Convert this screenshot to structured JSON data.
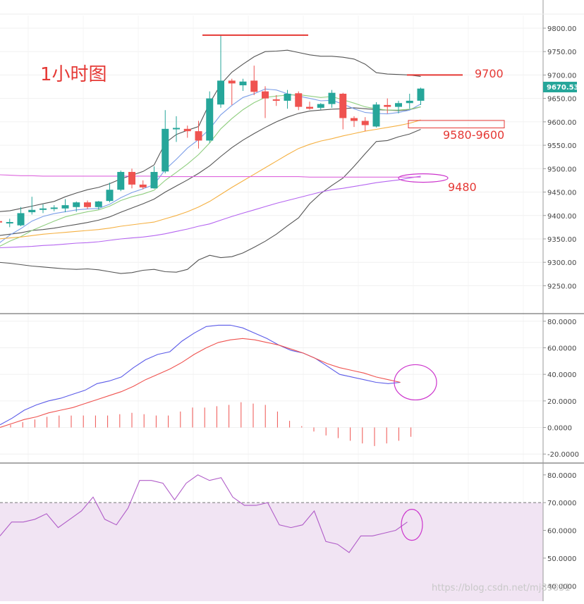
{
  "title": "1小时图",
  "watermark": "https://blog.csdn.net/mj89831",
  "price_panel": {
    "y_ticks": [
      "9800.00",
      "9750.00",
      "9700.00",
      "9650.00",
      "9600.00",
      "9550.00",
      "9500.00",
      "9450.00",
      "9400.00",
      "9350.00",
      "9300.00",
      "9250.00"
    ],
    "current_price": "9670.53",
    "annotations": [
      "9700",
      "9580-9600",
      "9480"
    ]
  },
  "macd_panel": {
    "y_ticks": [
      "80.0000",
      "60.0000",
      "40.0000",
      "20.0000",
      "0.0000",
      "-20.0000"
    ]
  },
  "rsi_panel": {
    "y_ticks": [
      "80.0000",
      "70.0000",
      "60.0000",
      "50.0000",
      "40.0000"
    ]
  },
  "colors": {
    "up": "#26a69a",
    "down": "#ef5350",
    "annotation": "#e53935",
    "bollinger": "#555555",
    "ma_short": "#7b9ee8",
    "ma_mid": "#8fce7f",
    "ma_long_orange": "#f5b041",
    "ma_purple": "#b565f0",
    "flat_magenta": "#dd66dd",
    "macd_fast": "#5b5be8",
    "macd_signal": "#ef5350",
    "rsi": "#b05cc8",
    "rsi_zone": "#f1e4f3"
  },
  "chart_data": [
    {
      "type": "candlestick",
      "timeframe": "1小时图",
      "ylim": [
        9210,
        9815
      ],
      "candles": [
        {
          "o": 9388,
          "h": 9393,
          "l": 9383,
          "c": 9387
        },
        {
          "o": 9385,
          "h": 9393,
          "l": 9375,
          "c": 9386
        },
        {
          "o": 9379,
          "h": 9418,
          "l": 9377,
          "c": 9405
        },
        {
          "o": 9407,
          "h": 9440,
          "l": 9402,
          "c": 9412
        },
        {
          "o": 9412,
          "h": 9424,
          "l": 9405,
          "c": 9415
        },
        {
          "o": 9415,
          "h": 9422,
          "l": 9409,
          "c": 9417
        },
        {
          "o": 9415,
          "h": 9435,
          "l": 9407,
          "c": 9422
        },
        {
          "o": 9418,
          "h": 9430,
          "l": 9408,
          "c": 9428
        },
        {
          "o": 9428,
          "h": 9432,
          "l": 9414,
          "c": 9418
        },
        {
          "o": 9418,
          "h": 9431,
          "l": 9413,
          "c": 9430
        },
        {
          "o": 9431,
          "h": 9470,
          "l": 9428,
          "c": 9455
        },
        {
          "o": 9455,
          "h": 9496,
          "l": 9452,
          "c": 9493
        },
        {
          "o": 9493,
          "h": 9500,
          "l": 9458,
          "c": 9466
        },
        {
          "o": 9466,
          "h": 9475,
          "l": 9456,
          "c": 9460
        },
        {
          "o": 9458,
          "h": 9505,
          "l": 9457,
          "c": 9493
        },
        {
          "o": 9494,
          "h": 9625,
          "l": 9490,
          "c": 9585
        },
        {
          "o": 9585,
          "h": 9612,
          "l": 9557,
          "c": 9587
        },
        {
          "o": 9585,
          "h": 9592,
          "l": 9566,
          "c": 9580
        },
        {
          "o": 9580,
          "h": 9602,
          "l": 9543,
          "c": 9560
        },
        {
          "o": 9560,
          "h": 9665,
          "l": 9555,
          "c": 9650
        },
        {
          "o": 9637,
          "h": 9785,
          "l": 9630,
          "c": 9688
        },
        {
          "o": 9688,
          "h": 9692,
          "l": 9636,
          "c": 9682
        },
        {
          "o": 9678,
          "h": 9692,
          "l": 9666,
          "c": 9686
        },
        {
          "o": 9688,
          "h": 9720,
          "l": 9657,
          "c": 9664
        },
        {
          "o": 9665,
          "h": 9676,
          "l": 9608,
          "c": 9650
        },
        {
          "o": 9648,
          "h": 9657,
          "l": 9634,
          "c": 9645
        },
        {
          "o": 9645,
          "h": 9668,
          "l": 9628,
          "c": 9660
        },
        {
          "o": 9661,
          "h": 9665,
          "l": 9625,
          "c": 9632
        },
        {
          "o": 9632,
          "h": 9643,
          "l": 9626,
          "c": 9628
        },
        {
          "o": 9630,
          "h": 9640,
          "l": 9626,
          "c": 9638
        },
        {
          "o": 9638,
          "h": 9668,
          "l": 9630,
          "c": 9662
        },
        {
          "o": 9660,
          "h": 9662,
          "l": 9584,
          "c": 9608
        },
        {
          "o": 9608,
          "h": 9612,
          "l": 9589,
          "c": 9602
        },
        {
          "o": 9602,
          "h": 9610,
          "l": 9580,
          "c": 9593
        },
        {
          "o": 9590,
          "h": 9642,
          "l": 9588,
          "c": 9637
        },
        {
          "o": 9636,
          "h": 9650,
          "l": 9618,
          "c": 9632
        },
        {
          "o": 9632,
          "h": 9645,
          "l": 9618,
          "c": 9640
        },
        {
          "o": 9640,
          "h": 9660,
          "l": 9628,
          "c": 9645
        },
        {
          "o": 9645,
          "h": 9673,
          "l": 9636,
          "c": 9671
        }
      ],
      "overlays": [
        {
          "name": "bollinger-upper",
          "color": "#555555",
          "values": [
            9408,
            9410,
            9415,
            9420,
            9425,
            9430,
            9440,
            9448,
            9455,
            9460,
            9468,
            9478,
            9486,
            9494,
            9508,
            9555,
            9573,
            9582,
            9590,
            9640,
            9680,
            9706,
            9723,
            9739,
            9750,
            9751,
            9753,
            9748,
            9743,
            9740,
            9740,
            9738,
            9734,
            9723,
            9705,
            9702,
            9701,
            9700,
            9697
          ]
        },
        {
          "name": "bollinger-mid",
          "color": "#555555",
          "values": [
            9357,
            9360,
            9363,
            9368,
            9370,
            9373,
            9377,
            9381,
            9385,
            9390,
            9397,
            9407,
            9416,
            9425,
            9435,
            9450,
            9463,
            9476,
            9490,
            9506,
            9526,
            9545,
            9561,
            9575,
            9588,
            9600,
            9610,
            9618,
            9623,
            9625,
            9627,
            9628,
            9630,
            9628,
            9626,
            9625,
            9624,
            9626,
            9632
          ]
        },
        {
          "name": "bollinger-lower",
          "color": "#555555",
          "values": [
            9300,
            9298,
            9295,
            9292,
            9290,
            9288,
            9286,
            9285,
            9286,
            9284,
            9280,
            9276,
            9278,
            9283,
            9285,
            9280,
            9279,
            9285,
            9305,
            9315,
            9310,
            9312,
            9320,
            9332,
            9345,
            9360,
            9378,
            9395,
            9425,
            9447,
            9464,
            9480,
            9505,
            9532,
            9558,
            9560,
            9568,
            9574,
            9584
          ]
        },
        {
          "name": "ma-short",
          "color": "#7b9ee8",
          "values": [
            9340,
            9358,
            9372,
            9388,
            9398,
            9404,
            9408,
            9412,
            9414,
            9415,
            9424,
            9438,
            9449,
            9457,
            9466,
            9498,
            9520,
            9544,
            9562,
            9585,
            9615,
            9635,
            9652,
            9660,
            9670,
            9668,
            9660,
            9655,
            9650,
            9645,
            9646,
            9638,
            9628,
            9620,
            9618,
            9617,
            9620,
            9625,
            9638
          ]
        },
        {
          "name": "ma-mid",
          "color": "#8fce7f",
          "values": [
            9333,
            9345,
            9355,
            9368,
            9378,
            9388,
            9397,
            9403,
            9408,
            9412,
            9420,
            9432,
            9440,
            9446,
            9454,
            9475,
            9492,
            9510,
            9530,
            9555,
            9585,
            9607,
            9626,
            9641,
            9652,
            9655,
            9657,
            9658,
            9655,
            9652,
            9654,
            9647,
            9640,
            9632,
            9628,
            9625,
            9625,
            9627,
            9632
          ]
        },
        {
          "name": "ma-long-orange",
          "color": "#f5b041",
          "values": [
            9350,
            9352,
            9354,
            9357,
            9360,
            9362,
            9364,
            9366,
            9368,
            9370,
            9373,
            9377,
            9380,
            9383,
            9386,
            9393,
            9400,
            9408,
            9418,
            9430,
            9445,
            9460,
            9474,
            9488,
            9502,
            9516,
            9530,
            9543,
            9552,
            9559,
            9564,
            9570,
            9575,
            9580,
            9584,
            9588,
            9592,
            9597,
            9604
          ]
        },
        {
          "name": "ma-purple",
          "color": "#b565f0",
          "values": [
            9331,
            9332,
            9333,
            9334,
            9336,
            9337,
            9339,
            9341,
            9342,
            9344,
            9347,
            9350,
            9352,
            9354,
            9357,
            9361,
            9366,
            9371,
            9377,
            9382,
            9390,
            9398,
            9405,
            9412,
            9419,
            9426,
            9432,
            9438,
            9444,
            9450,
            9455,
            9458,
            9462,
            9466,
            9470,
            9473,
            9476,
            9480,
            9484
          ]
        },
        {
          "name": "flat-magenta",
          "color": "#dd66dd",
          "values": [
            9487,
            9486,
            9485,
            9485,
            9484,
            9484,
            9484,
            9484,
            9484,
            9484,
            9484,
            9484,
            9484,
            9484,
            9484,
            9483,
            9483,
            9483,
            9483,
            9483,
            9483,
            9483,
            9483,
            9483,
            9483,
            9483,
            9483,
            9483,
            9482,
            9482,
            9482,
            9482,
            9482,
            9482,
            9482,
            9482,
            9482,
            9482,
            9482
          ]
        }
      ],
      "horizontal_levels": [
        9785,
        9700,
        9590,
        9480
      ]
    },
    {
      "type": "line",
      "indicator": "MACD",
      "ylim": [
        -22,
        82
      ],
      "series": [
        {
          "color": "#5b5be8",
          "values": [
            2,
            7,
            13,
            17,
            20,
            22,
            25,
            28,
            33,
            35,
            38,
            45,
            51,
            55,
            57,
            65,
            71,
            76,
            77,
            77,
            75,
            71,
            67,
            62,
            58,
            56,
            52,
            46,
            40,
            38,
            36,
            34,
            33,
            34
          ]
        },
        {
          "color": "#ef5350",
          "values": [
            0,
            3,
            6,
            8,
            11,
            13,
            15,
            18,
            21,
            24,
            27,
            31,
            36,
            40,
            44,
            49,
            55,
            60,
            64,
            66,
            67,
            66,
            64,
            62,
            59,
            56,
            52,
            48,
            45,
            43,
            41,
            38,
            36,
            34
          ]
        }
      ],
      "histogram": [
        2,
        4,
        6,
        8,
        9,
        9,
        9,
        9,
        9,
        10,
        11,
        10,
        9,
        9,
        12,
        15,
        15,
        16,
        17,
        19,
        18,
        17,
        12,
        5,
        1,
        -3,
        -6,
        -8,
        -10,
        -12,
        -14,
        -12,
        -10,
        -7
      ]
    },
    {
      "type": "line",
      "indicator": "RSI",
      "ylim": [
        36,
        83
      ],
      "overbought_level": 70,
      "values": [
        58,
        63,
        63,
        64,
        66,
        61,
        64,
        67,
        72,
        64,
        62,
        68,
        78,
        78,
        77,
        71,
        77,
        80,
        78,
        79,
        72,
        69,
        69,
        70,
        62,
        61,
        62,
        67,
        56,
        55,
        52,
        58,
        58,
        59,
        60,
        63
      ]
    }
  ]
}
